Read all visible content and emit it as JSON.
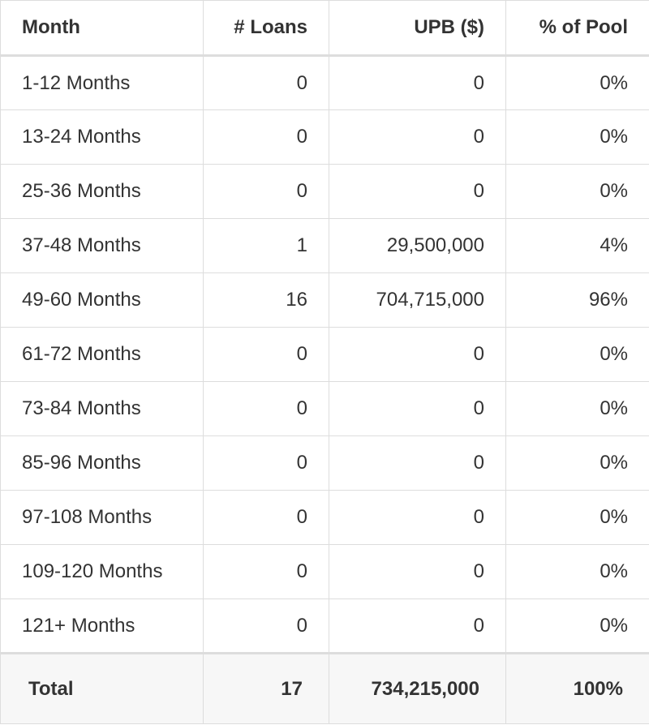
{
  "table": {
    "header": [
      "Month",
      "# Loans",
      "UPB ($)",
      "% of Pool"
    ],
    "rows": [
      [
        "1-12 Months",
        "0",
        "0",
        "0%"
      ],
      [
        "13-24 Months",
        "0",
        "0",
        "0%"
      ],
      [
        "25-36 Months",
        "0",
        "0",
        "0%"
      ],
      [
        "37-48 Months",
        "1",
        "29,500,000",
        "4%"
      ],
      [
        "49-60 Months",
        "16",
        "704,715,000",
        "96%"
      ],
      [
        "61-72 Months",
        "0",
        "0",
        "0%"
      ],
      [
        "73-84 Months",
        "0",
        "0",
        "0%"
      ],
      [
        "85-96 Months",
        "0",
        "0",
        "0%"
      ],
      [
        "97-108 Months",
        "0",
        "0",
        "0%"
      ],
      [
        "109-120 Months",
        "0",
        "0",
        "0%"
      ],
      [
        "121+ Months",
        "0",
        "0",
        "0%"
      ]
    ],
    "total": [
      "Total",
      "17",
      "734,215,000",
      "100%"
    ]
  }
}
